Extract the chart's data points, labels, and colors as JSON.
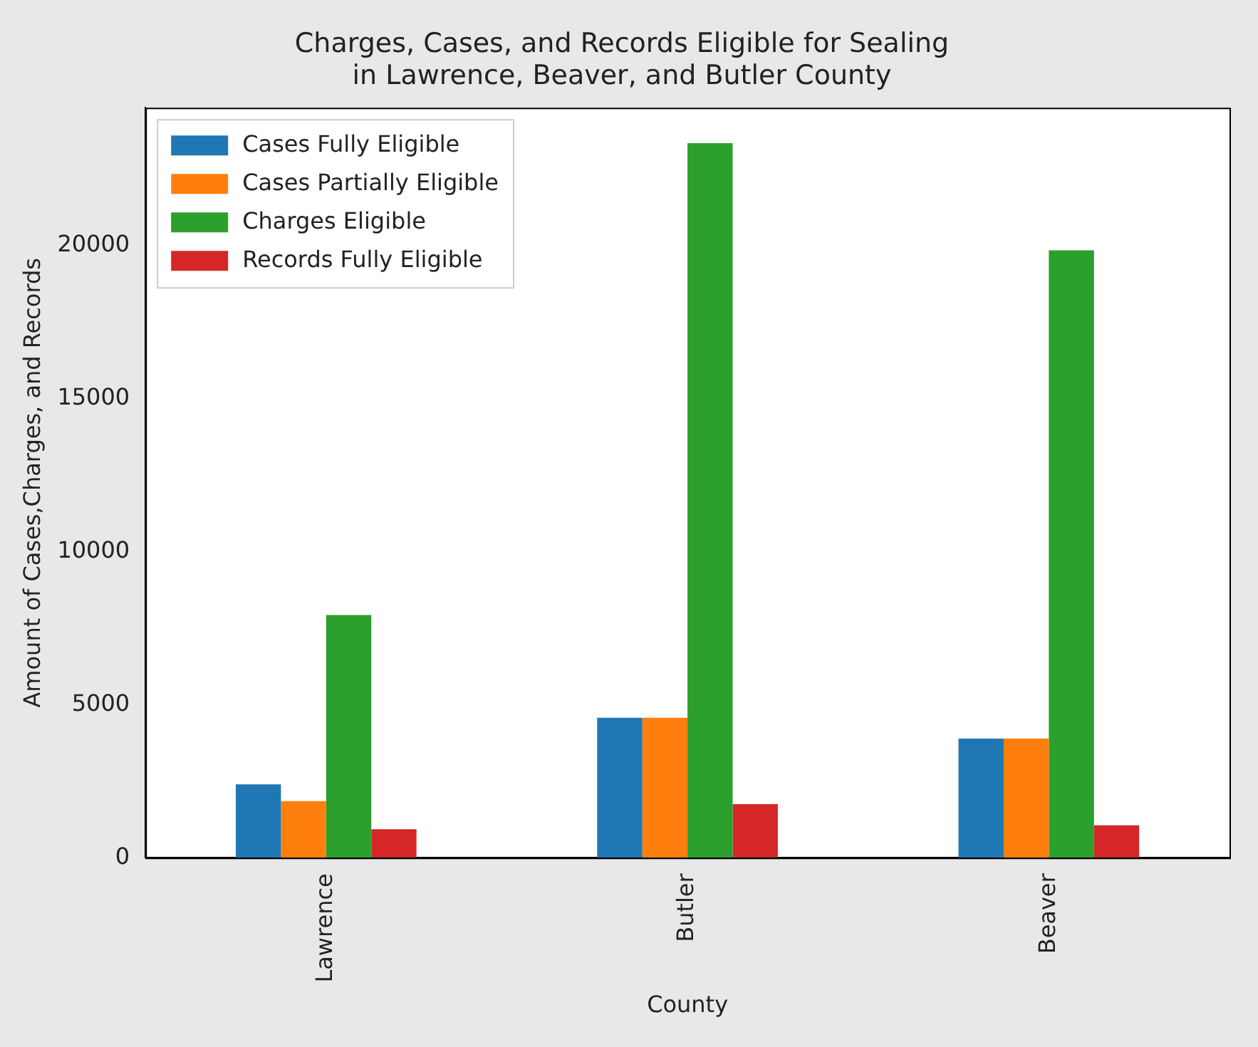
{
  "chart_data": {
    "type": "bar",
    "title": "Charges, Cases, and Records Eligible for Sealing\nin Lawrence, Beaver, and Butler County",
    "xlabel": "County",
    "ylabel": "Amount of Cases,Charges, and Records",
    "categories": [
      "Lawrence",
      "Butler",
      "Beaver"
    ],
    "series": [
      {
        "name": "Cases Fully Eligible",
        "color": "#1f77b4",
        "values": [
          2400,
          4570,
          3890
        ]
      },
      {
        "name": "Cases Partially Eligible",
        "color": "#ff7f0e",
        "values": [
          1850,
          4570,
          3890
        ]
      },
      {
        "name": "Charges Eligible",
        "color": "#2ca02c",
        "values": [
          7930,
          23340,
          19840
        ]
      },
      {
        "name": "Records Fully Eligible",
        "color": "#d62728",
        "values": [
          930,
          1750,
          1060
        ]
      }
    ],
    "ylim": [
      0,
      24500
    ],
    "yticks": [
      0,
      5000,
      10000,
      15000,
      20000
    ],
    "grid": false,
    "legend": "top left"
  }
}
